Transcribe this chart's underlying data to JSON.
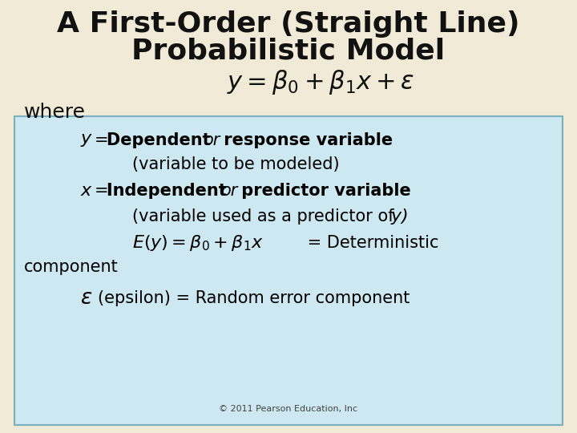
{
  "title_line1": "A First-Order (Straight Line)",
  "title_line2": "Probabilistic Model",
  "bg_outer": "#f0ead6",
  "bg_inner": "#cde8f0",
  "inner_border_color": "#7ab0c0",
  "title_color": "#111111",
  "title_fontsize": 26,
  "equation_fontsize": 20,
  "where_fontsize": 18,
  "body_fontsize": 15,
  "footer": "© 2011 Pearson Education, Inc",
  "footer_fontsize": 8
}
